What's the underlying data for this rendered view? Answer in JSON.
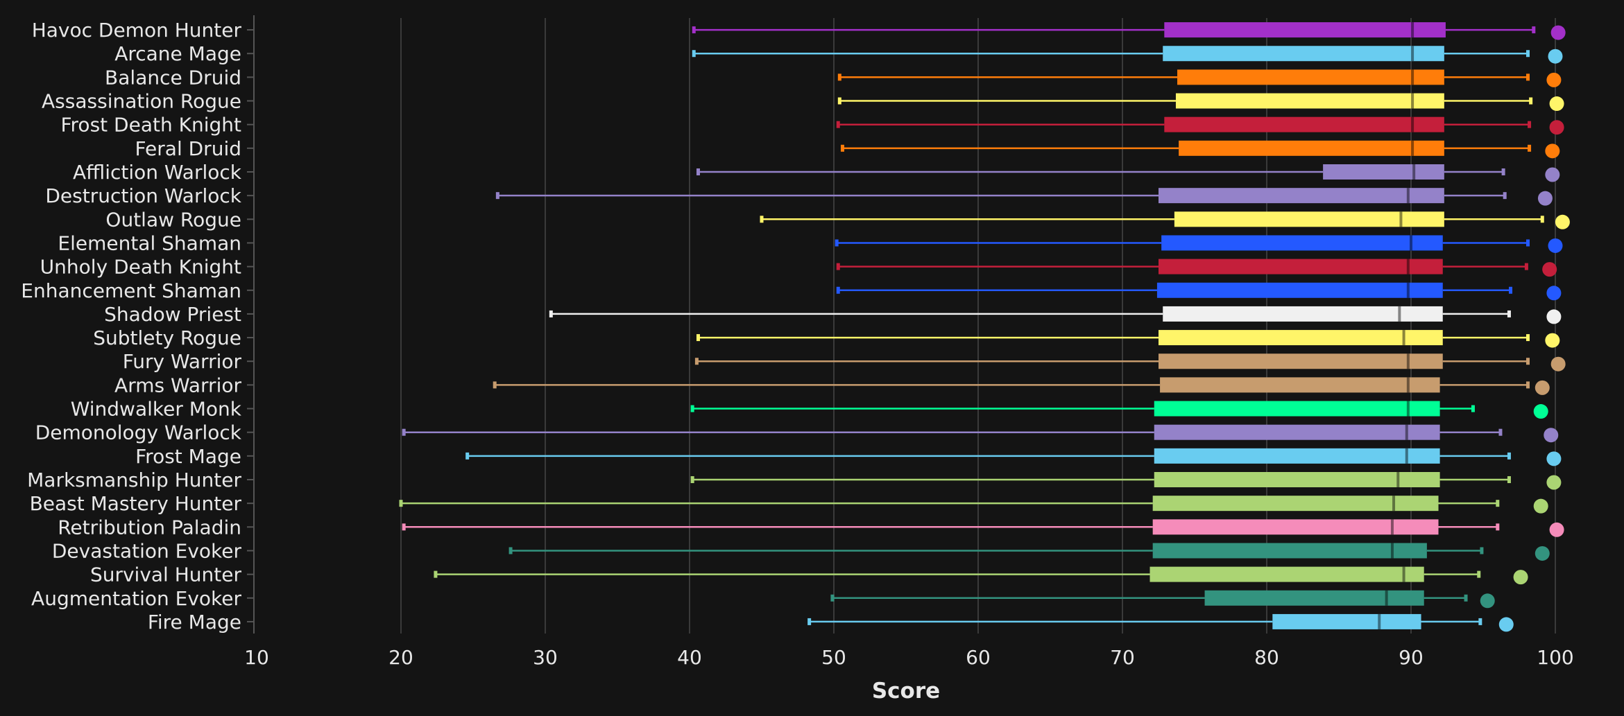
{
  "chart_data": {
    "type": "box",
    "orientation": "horizontal",
    "title": "",
    "xlabel": "Score",
    "ylabel": "",
    "xlim": [
      10,
      100
    ],
    "xticks": [
      10,
      20,
      30,
      40,
      50,
      60,
      70,
      80,
      90,
      100
    ],
    "grid": true,
    "background": "#141414",
    "series": [
      {
        "name": "Havoc Demon Hunter",
        "color": "#a330c9",
        "min": 40.3,
        "q1": 72.9,
        "median": 90.1,
        "q3": 92.4,
        "max": 98.5,
        "best": 100.2
      },
      {
        "name": "Arcane Mage",
        "color": "#69ccf0",
        "min": 40.3,
        "q1": 72.8,
        "median": 90.1,
        "q3": 92.3,
        "max": 98.1,
        "best": 100.0
      },
      {
        "name": "Balance Druid",
        "color": "#ff7d0a",
        "min": 50.4,
        "q1": 73.8,
        "median": 90.1,
        "q3": 92.3,
        "max": 98.1,
        "best": 99.9
      },
      {
        "name": "Assassination Rogue",
        "color": "#fff569",
        "min": 50.4,
        "q1": 73.7,
        "median": 90.1,
        "q3": 92.3,
        "max": 98.3,
        "best": 100.1
      },
      {
        "name": "Frost Death Knight",
        "color": "#c41f3b",
        "min": 50.3,
        "q1": 72.9,
        "median": 90.1,
        "q3": 92.3,
        "max": 98.2,
        "best": 100.1
      },
      {
        "name": "Feral Druid",
        "color": "#ff7d0a",
        "min": 50.6,
        "q1": 73.9,
        "median": 90.1,
        "q3": 92.3,
        "max": 98.2,
        "best": 99.8
      },
      {
        "name": "Affliction Warlock",
        "color": "#9482c9",
        "min": 40.6,
        "q1": 83.9,
        "median": 90.2,
        "q3": 92.3,
        "max": 96.4,
        "best": 99.8
      },
      {
        "name": "Destruction Warlock",
        "color": "#9482c9",
        "min": 26.7,
        "q1": 72.5,
        "median": 89.8,
        "q3": 92.3,
        "max": 96.5,
        "best": 99.3
      },
      {
        "name": "Outlaw Rogue",
        "color": "#fff569",
        "min": 45.0,
        "q1": 73.6,
        "median": 89.3,
        "q3": 92.3,
        "max": 99.1,
        "best": 100.5
      },
      {
        "name": "Elemental Shaman",
        "color": "#2459ff",
        "min": 50.2,
        "q1": 72.7,
        "median": 90.0,
        "q3": 92.2,
        "max": 98.1,
        "best": 100.0
      },
      {
        "name": "Unholy Death Knight",
        "color": "#c41f3b",
        "min": 50.3,
        "q1": 72.5,
        "median": 89.8,
        "q3": 92.2,
        "max": 98.0,
        "best": 99.6
      },
      {
        "name": "Enhancement Shaman",
        "color": "#2459ff",
        "min": 50.3,
        "q1": 72.4,
        "median": 89.8,
        "q3": 92.2,
        "max": 96.9,
        "best": 99.9
      },
      {
        "name": "Shadow Priest",
        "color": "#f0f0f0",
        "min": 30.4,
        "q1": 72.8,
        "median": 89.2,
        "q3": 92.2,
        "max": 96.8,
        "best": 99.9
      },
      {
        "name": "Subtlety Rogue",
        "color": "#fff569",
        "min": 40.6,
        "q1": 72.5,
        "median": 89.5,
        "q3": 92.2,
        "max": 98.1,
        "best": 99.8
      },
      {
        "name": "Fury Warrior",
        "color": "#c79c6e",
        "min": 40.5,
        "q1": 72.5,
        "median": 89.8,
        "q3": 92.2,
        "max": 98.1,
        "best": 100.2
      },
      {
        "name": "Arms Warrior",
        "color": "#c79c6e",
        "min": 26.5,
        "q1": 72.6,
        "median": 89.8,
        "q3": 92.0,
        "max": 98.1,
        "best": 99.1
      },
      {
        "name": "Windwalker Monk",
        "color": "#00ff96",
        "min": 40.2,
        "q1": 72.2,
        "median": 89.8,
        "q3": 92.0,
        "max": 94.3,
        "best": 99.0
      },
      {
        "name": "Demonology Warlock",
        "color": "#9482c9",
        "min": 20.2,
        "q1": 72.2,
        "median": 89.7,
        "q3": 92.0,
        "max": 96.2,
        "best": 99.7
      },
      {
        "name": "Frost Mage",
        "color": "#69ccf0",
        "min": 24.6,
        "q1": 72.2,
        "median": 89.7,
        "q3": 92.0,
        "max": 96.8,
        "best": 99.9
      },
      {
        "name": "Marksmanship Hunter",
        "color": "#abd473",
        "min": 40.2,
        "q1": 72.2,
        "median": 89.1,
        "q3": 92.0,
        "max": 96.8,
        "best": 99.9
      },
      {
        "name": "Beast Mastery Hunter",
        "color": "#abd473",
        "min": 20.0,
        "q1": 72.1,
        "median": 88.8,
        "q3": 91.9,
        "max": 96.0,
        "best": 99.0
      },
      {
        "name": "Retribution Paladin",
        "color": "#f58cba",
        "min": 20.2,
        "q1": 72.1,
        "median": 88.7,
        "q3": 91.9,
        "max": 96.0,
        "best": 100.1
      },
      {
        "name": "Devastation Evoker",
        "color": "#33937f",
        "min": 27.6,
        "q1": 72.1,
        "median": 88.7,
        "q3": 91.1,
        "max": 94.9,
        "best": 99.1
      },
      {
        "name": "Survival Hunter",
        "color": "#abd473",
        "min": 22.4,
        "q1": 71.9,
        "median": 89.5,
        "q3": 90.9,
        "max": 94.7,
        "best": 97.6
      },
      {
        "name": "Augmentation Evoker",
        "color": "#33937f",
        "min": 49.9,
        "q1": 75.7,
        "median": 88.3,
        "q3": 90.9,
        "max": 93.8,
        "best": 95.3
      },
      {
        "name": "Fire Mage",
        "color": "#69ccf0",
        "min": 48.3,
        "q1": 80.4,
        "median": 87.8,
        "q3": 90.7,
        "max": 94.8,
        "best": 96.6
      }
    ]
  }
}
